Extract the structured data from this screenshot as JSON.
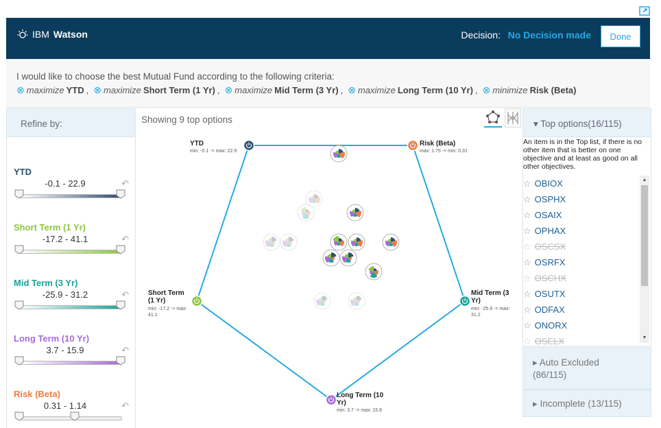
{
  "header": {
    "brand_ibm": "IBM",
    "brand_watson": "Watson",
    "decision_label": "Decision:",
    "decision_value": "No Decision made",
    "done_label": "Done",
    "bg_color": "#0b3c5d",
    "accent_color": "#27a9e1"
  },
  "criteria": {
    "intro": "I would like to choose the best Mutual Fund according to the following criteria:",
    "items": [
      {
        "verb": "maximize",
        "name": "YTD",
        "sep": ","
      },
      {
        "verb": "maximize",
        "name": "Short Term (1 Yr)",
        "sep": ","
      },
      {
        "verb": "maximize",
        "name": "Mid Term (3 Yr)",
        "sep": ","
      },
      {
        "verb": "maximize",
        "name": "Long Term (10 Yr)",
        "sep": ","
      },
      {
        "verb": "minimize",
        "name": "Risk (Beta)",
        "sep": ""
      }
    ]
  },
  "refine": {
    "label": "Refine by:",
    "filters": [
      {
        "name": "YTD",
        "range": "-0.1 - 22.9",
        "color": "#2e4f73",
        "low": 0.0,
        "high": 1.0
      },
      {
        "name": "Short Term (1 Yr)",
        "range": "-17.2 - 41.1",
        "color": "#8cc63f",
        "low": 0.0,
        "high": 1.0
      },
      {
        "name": "Mid Term (3 Yr)",
        "range": "-25.9 - 31.2",
        "color": "#1aa39a",
        "low": 0.0,
        "high": 1.0
      },
      {
        "name": "Long Term (10 Yr)",
        "range": "3.7 - 15.9",
        "color": "#a76bd6",
        "low": 0.0,
        "high": 1.0
      },
      {
        "name": "Risk (Beta)",
        "range": "0.31 - 1.14",
        "color": "#f07c40",
        "low": 0.0,
        "high": 0.55
      }
    ]
  },
  "main": {
    "showing": "Showing 9 top options",
    "axes": [
      {
        "label": "YTD",
        "range": "min: -0.1 -> max: 22.9",
        "color": "#2e4f73"
      },
      {
        "label": "Risk (Beta)",
        "range": "max: 1.75 -> min: 0.31",
        "color": "#f07c40"
      },
      {
        "label": "Mid Term (3 Yr)",
        "range": "min: -25.9 -> max: 31.2",
        "color": "#1aa39a"
      },
      {
        "label": "Long Term (10 Yr)",
        "range": "min: 3.7 -> max: 15.9",
        "color": "#a76bd6"
      },
      {
        "label": "Short Term (1 Yr)",
        "range": "min: -17.2 -> max: 41.1",
        "color": "#8cc63f"
      }
    ]
  },
  "top_options": {
    "title": "Top options(16/115)",
    "description": "An item is in the Top list, if there is no other item that is better on one objective and at least as good on all other objectives.",
    "items": [
      {
        "name": "OBIOX",
        "disabled": false
      },
      {
        "name": "OSPHX",
        "disabled": false
      },
      {
        "name": "OSAIX",
        "disabled": false
      },
      {
        "name": "OPHAX",
        "disabled": false
      },
      {
        "name": "OSCSX",
        "disabled": true
      },
      {
        "name": "OSRFX",
        "disabled": false
      },
      {
        "name": "OSCHX",
        "disabled": true
      },
      {
        "name": "OSUTX",
        "disabled": false
      },
      {
        "name": "ODFAX",
        "disabled": false
      },
      {
        "name": "ONORX",
        "disabled": false
      },
      {
        "name": "OSELX",
        "disabled": true
      }
    ]
  },
  "auto_excluded": {
    "title": "Auto Excluded",
    "count": "(86/115)"
  },
  "incomplete": {
    "title": "Incomplete (13/115)"
  }
}
